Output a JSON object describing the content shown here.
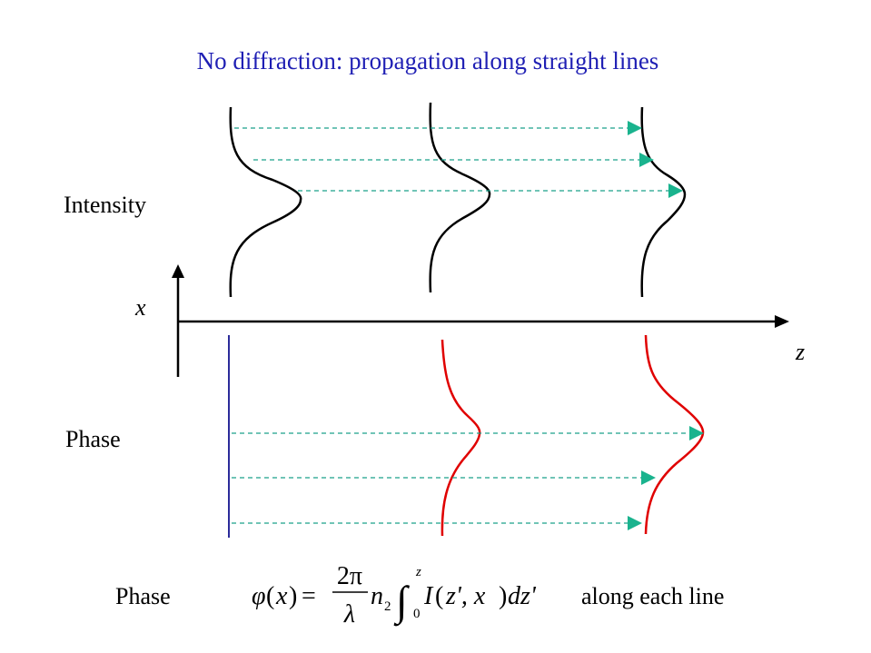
{
  "title": "No diffraction: propagation along straight lines",
  "labels": {
    "intensity": "Intensity",
    "phase": "Phase",
    "x_axis": "x",
    "z_axis": "z"
  },
  "equation": {
    "label": "Phase",
    "phi": "φ",
    "x": "x",
    "equals": "=",
    "numerator": "2π",
    "denominator": "λ",
    "n": "n",
    "n_sub": "2",
    "integral": "∫",
    "upper": "z",
    "lower": "0",
    "I": "I",
    "args": "z', x",
    "dz": "dz'",
    "suffix": "along each line"
  },
  "colors": {
    "title": "#1f1fb4",
    "intensity_curve": "#000000",
    "phase_curve": "#e00000",
    "ray": "#1ab38e",
    "initial_phase_line": "#2b2b9a"
  }
}
